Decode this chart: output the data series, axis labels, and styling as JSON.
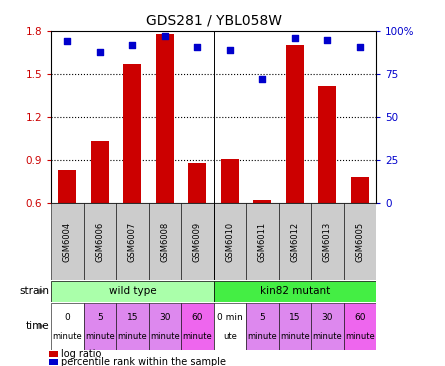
{
  "title": "GDS281 / YBL058W",
  "samples": [
    "GSM6004",
    "GSM6006",
    "GSM6007",
    "GSM6008",
    "GSM6009",
    "GSM6010",
    "GSM6011",
    "GSM6012",
    "GSM6013",
    "GSM6005"
  ],
  "log_ratio": [
    0.83,
    1.03,
    1.57,
    1.78,
    0.88,
    0.91,
    0.62,
    1.7,
    1.42,
    0.78
  ],
  "percentile": [
    94,
    88,
    92,
    97,
    91,
    89,
    72,
    96,
    95,
    91
  ],
  "bar_color": "#cc0000",
  "dot_color": "#0000cc",
  "ylim_left": [
    0.6,
    1.8
  ],
  "ylim_right": [
    0,
    100
  ],
  "yticks_left": [
    0.6,
    0.9,
    1.2,
    1.5,
    1.8
  ],
  "yticks_right": [
    0,
    25,
    50,
    75,
    100
  ],
  "gridlines": [
    0.9,
    1.2,
    1.5
  ],
  "strain_labels": [
    "wild type",
    "kin82 mutant"
  ],
  "strain_colors": [
    "#aaffaa",
    "#44ee44"
  ],
  "time_labels": [
    [
      "0",
      "minute"
    ],
    [
      "5",
      "minute"
    ],
    [
      "15",
      "minute"
    ],
    [
      "30",
      "minute"
    ],
    [
      "60",
      "minute"
    ],
    [
      "0 min",
      "ute"
    ],
    [
      "5",
      "minute"
    ],
    [
      "15",
      "minute"
    ],
    [
      "30",
      "minute"
    ],
    [
      "60",
      "minute"
    ]
  ],
  "time_colors": [
    "#ffffff",
    "#dd88ee",
    "#dd88ee",
    "#dd88ee",
    "#ee66ee",
    "#ffffff",
    "#dd88ee",
    "#dd88ee",
    "#dd88ee",
    "#ee66ee"
  ],
  "tick_label_color_left": "#cc0000",
  "tick_label_color_right": "#0000cc",
  "sample_box_color": "#cccccc",
  "background_color": "#ffffff"
}
